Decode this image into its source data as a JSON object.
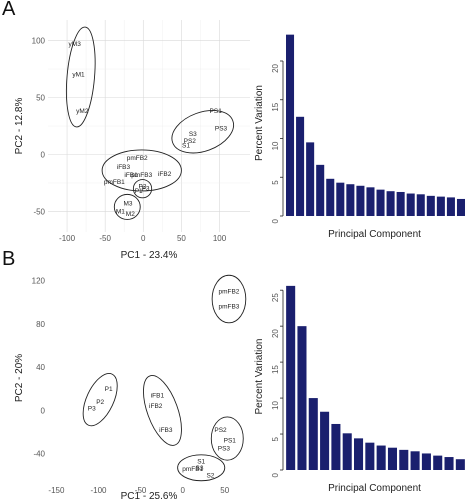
{
  "panels": {
    "A": "A",
    "B": "B"
  },
  "chart_data": [
    {
      "type": "scatter",
      "panel": "A",
      "xlabel": "PC1 - 23.4%",
      "ylabel": "PC2 - 12.8%",
      "xlim": [
        -125,
        140
      ],
      "ylim": [
        -68,
        118
      ],
      "xticks": [
        -100,
        -50,
        0,
        50,
        100
      ],
      "yticks": [
        -50,
        0,
        50,
        100
      ],
      "grid": true,
      "points": [
        {
          "label": "yM3",
          "x": -90,
          "y": 97
        },
        {
          "label": "yM1",
          "x": -85,
          "y": 70
        },
        {
          "label": "yM2",
          "x": -80,
          "y": 38
        },
        {
          "label": "PS1",
          "x": 95,
          "y": 38
        },
        {
          "label": "PS3",
          "x": 102,
          "y": 23
        },
        {
          "label": "S3",
          "x": 65,
          "y": 18
        },
        {
          "label": "PS2",
          "x": 61,
          "y": 12
        },
        {
          "label": "S1",
          "x": 56,
          "y": 8
        },
        {
          "label": "pmFB2",
          "x": -8,
          "y": -3
        },
        {
          "label": "iFB3",
          "x": -26,
          "y": -11
        },
        {
          "label": "iFB1",
          "x": -16,
          "y": -18
        },
        {
          "label": "pmFB3",
          "x": -2,
          "y": -18
        },
        {
          "label": "iFB2",
          "x": 28,
          "y": -17
        },
        {
          "label": "pmFB1",
          "x": -38,
          "y": -24
        },
        {
          "label": "P2",
          "x": -1,
          "y": -28
        },
        {
          "label": "P1",
          "x": -6,
          "y": -32
        },
        {
          "label": "P3",
          "x": 3,
          "y": -30
        },
        {
          "label": "M3",
          "x": -20,
          "y": -43
        },
        {
          "label": "M1",
          "x": -30,
          "y": -50
        },
        {
          "label": "M2",
          "x": -17,
          "y": -52
        }
      ],
      "ellipses": [
        {
          "cx": -82,
          "cy": 68,
          "rx": 18,
          "ry": 44,
          "angle": 5
        },
        {
          "cx": 78,
          "cy": 20,
          "rx": 42,
          "ry": 17,
          "angle": -20
        },
        {
          "cx": -2,
          "cy": -14,
          "rx": 52,
          "ry": 18,
          "angle": 0
        },
        {
          "cx": -1,
          "cy": -30,
          "rx": 12,
          "ry": 8,
          "angle": 0
        },
        {
          "cx": -21,
          "cy": -46,
          "rx": 17,
          "ry": 11,
          "angle": 0
        }
      ]
    },
    {
      "type": "bar",
      "panel": "A",
      "xlabel": "Principal Component",
      "ylabel": "Percent Variation",
      "ylim": [
        0,
        24
      ],
      "yticks": [
        0,
        5,
        10,
        15,
        20
      ],
      "values": [
        23.4,
        12.8,
        9.5,
        6.6,
        4.8,
        4.3,
        4.1,
        3.9,
        3.7,
        3.4,
        3.2,
        3.1,
        2.9,
        2.8,
        2.6,
        2.5,
        2.4,
        2.2
      ]
    },
    {
      "type": "scatter",
      "panel": "B",
      "xlabel": "PC1 - 25.6%",
      "ylabel": "PC2 - 20%",
      "xlim": [
        -160,
        80
      ],
      "ylim": [
        -68,
        128
      ],
      "xticks": [
        -150,
        -100,
        -50,
        0,
        50
      ],
      "yticks": [
        -40,
        0,
        40,
        80,
        120
      ],
      "grid": false,
      "points": [
        {
          "label": "pmFB2",
          "x": 55,
          "y": 110
        },
        {
          "label": "pmFB3",
          "x": 55,
          "y": 96
        },
        {
          "label": "P1",
          "x": -88,
          "y": 20
        },
        {
          "label": "P2",
          "x": -98,
          "y": 8
        },
        {
          "label": "P3",
          "x": -108,
          "y": 2
        },
        {
          "label": "iFB1",
          "x": -30,
          "y": 14
        },
        {
          "label": "iFB2",
          "x": -32,
          "y": 4
        },
        {
          "label": "iFB3",
          "x": -20,
          "y": -18
        },
        {
          "label": "PS2",
          "x": 45,
          "y": -18
        },
        {
          "label": "PS1",
          "x": 56,
          "y": -28
        },
        {
          "label": "PS3",
          "x": 49,
          "y": -35
        },
        {
          "label": "S1",
          "x": 22,
          "y": -47
        },
        {
          "label": "pmFB1",
          "x": 12,
          "y": -54
        },
        {
          "label": "S3",
          "x": 20,
          "y": -53
        },
        {
          "label": "S2",
          "x": 33,
          "y": -60
        }
      ],
      "ellipses": [
        {
          "cx": 55,
          "cy": 103,
          "rx": 20,
          "ry": 22,
          "angle": 0
        },
        {
          "cx": -98,
          "cy": 10,
          "rx": 16,
          "ry": 26,
          "angle": 25
        },
        {
          "cx": -24,
          "cy": 0,
          "rx": 18,
          "ry": 34,
          "angle": -20
        },
        {
          "cx": 53,
          "cy": -26,
          "rx": 19,
          "ry": 20,
          "angle": 0
        },
        {
          "cx": 22,
          "cy": -53,
          "rx": 28,
          "ry": 12,
          "angle": 0
        }
      ]
    },
    {
      "type": "bar",
      "panel": "B",
      "xlabel": "Principal Component",
      "ylabel": "Percent Variation",
      "ylim": [
        0,
        26
      ],
      "yticks": [
        0,
        5,
        10,
        15,
        20,
        25
      ],
      "values": [
        25.6,
        20.0,
        10.0,
        8.1,
        6.4,
        5.1,
        4.4,
        3.8,
        3.4,
        3.1,
        2.8,
        2.6,
        2.3,
        2.0,
        1.8,
        1.5
      ]
    }
  ]
}
